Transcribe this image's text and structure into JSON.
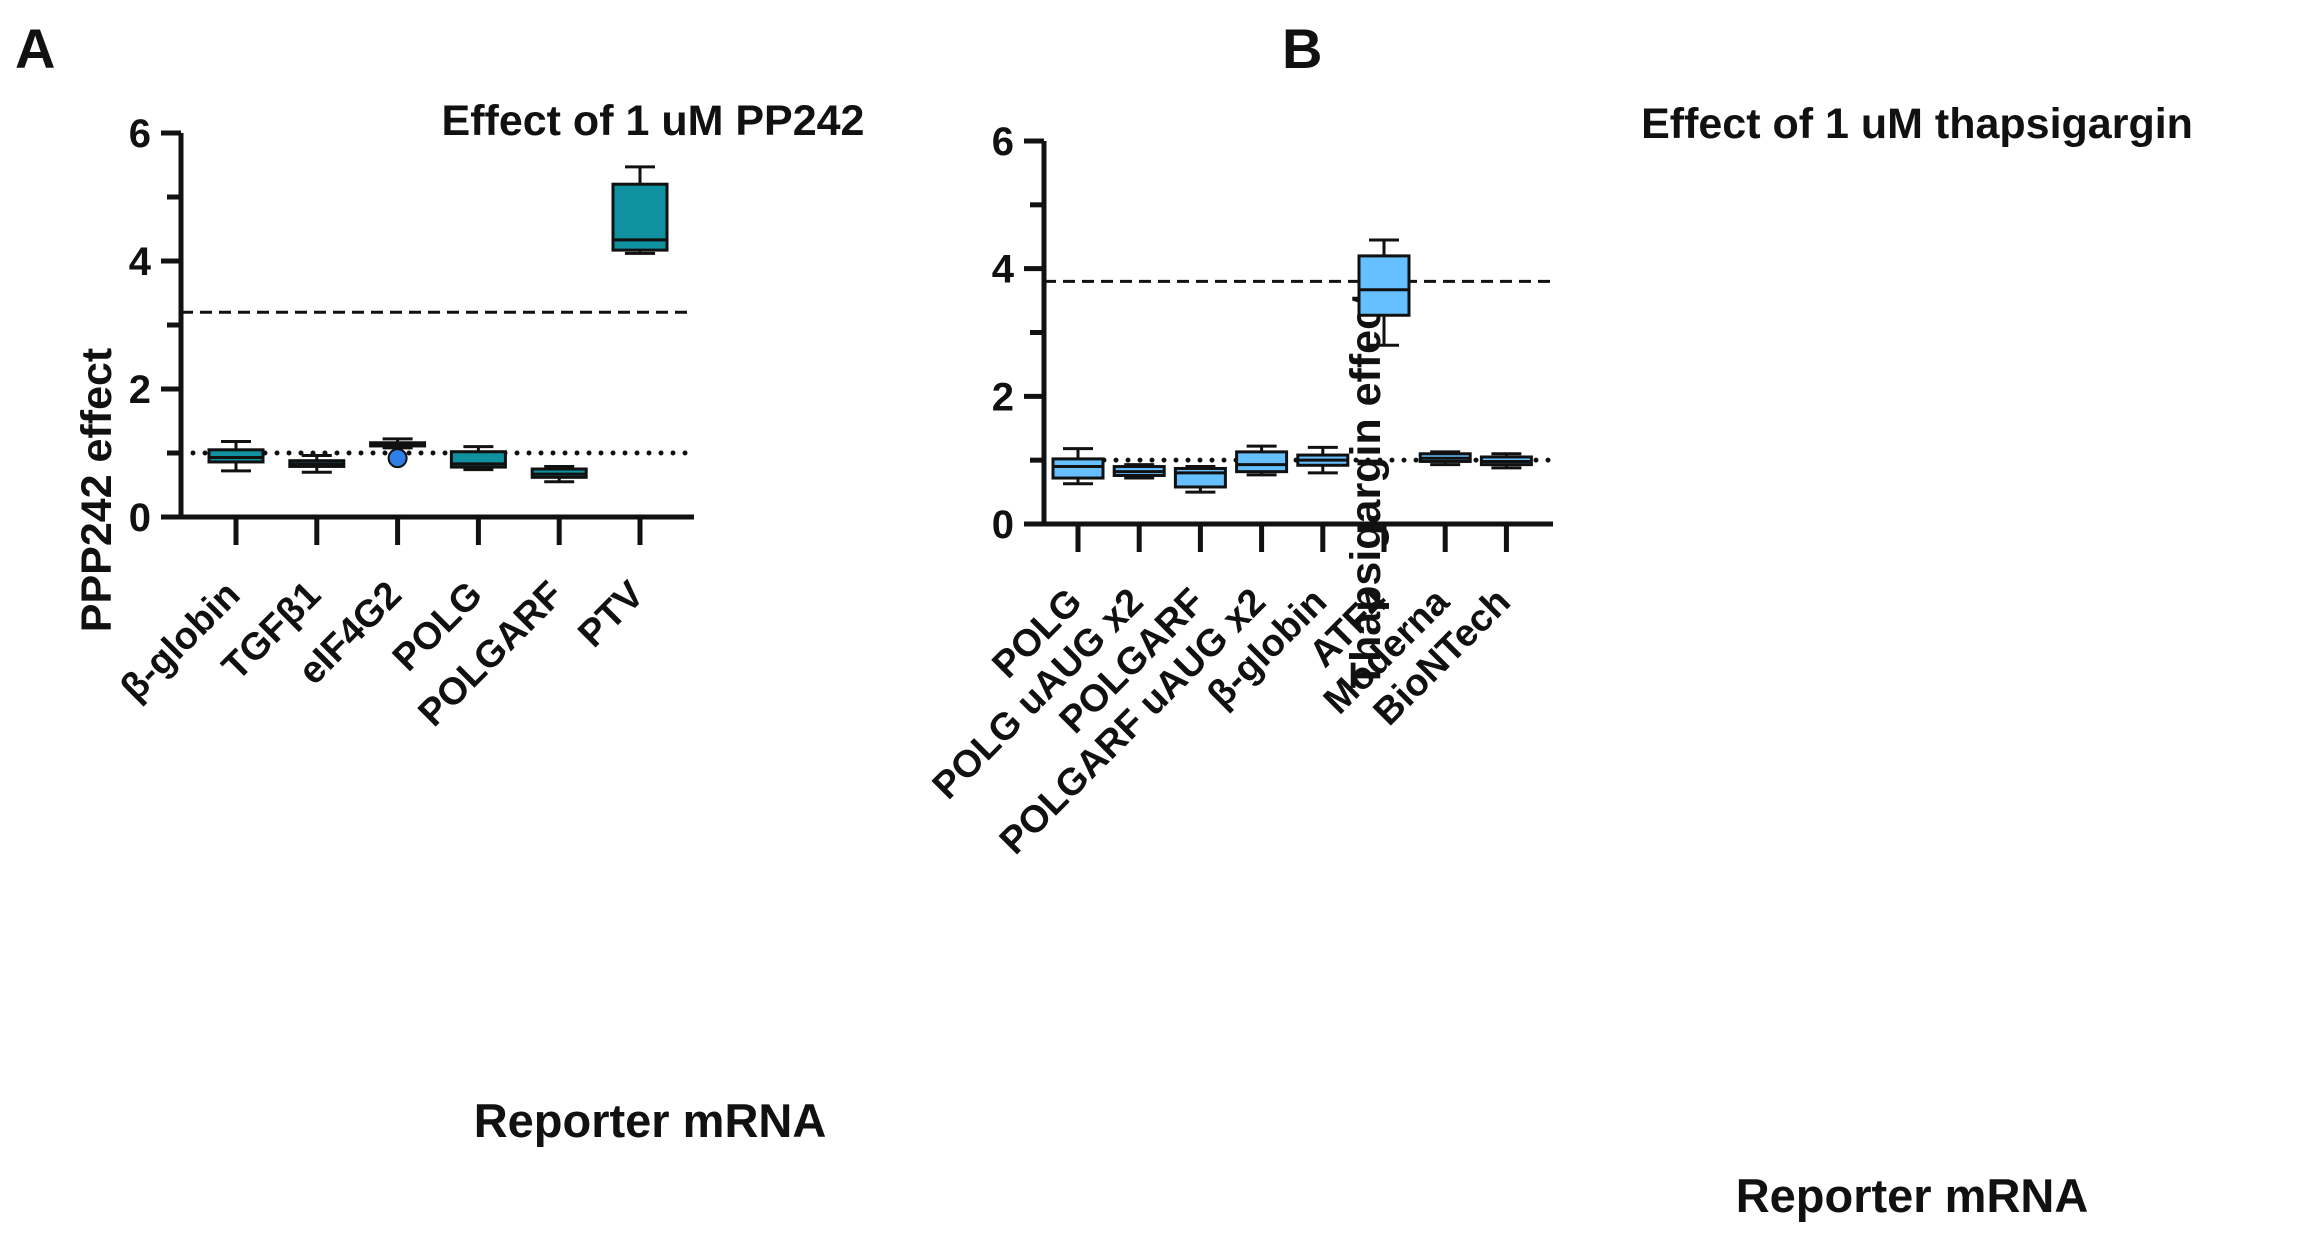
{
  "colors": {
    "panelA_box": "#0f919f",
    "panelB_box": "#66bfff",
    "axis": "#111111",
    "outlier": "#2f7fe6"
  },
  "chart_data": [
    {
      "type": "box",
      "panel_label": "A",
      "title": "Effect of 1 uM PP242",
      "xlabel": "Reporter mRNA",
      "ylabel": "PPP242 effect",
      "ylim": [
        0,
        6
      ],
      "yticks": [
        0,
        2,
        4,
        6
      ],
      "yticklabels": [
        "0",
        "2",
        "4",
        "6"
      ],
      "dashed_line": 3.2,
      "dotted_line": 1.0,
      "categories": [
        "β-globin",
        "TGFβ1",
        "eIF4G2",
        "POLG",
        "POLGARF",
        "PTV"
      ],
      "boxes": [
        {
          "min": 0.72,
          "q1": 0.86,
          "median": 0.93,
          "q3": 1.05,
          "max": 1.18
        },
        {
          "min": 0.7,
          "q1": 0.79,
          "median": 0.83,
          "q3": 0.88,
          "max": 0.96
        },
        {
          "min": 1.08,
          "q1": 1.11,
          "median": 1.14,
          "q3": 1.16,
          "max": 1.22,
          "outliers": [
            0.92
          ]
        },
        {
          "min": 0.74,
          "q1": 0.78,
          "median": 0.83,
          "q3": 1.02,
          "max": 1.1
        },
        {
          "min": 0.55,
          "q1": 0.62,
          "median": 0.67,
          "q3": 0.75,
          "max": 0.79
        },
        {
          "min": 4.12,
          "q1": 4.17,
          "median": 4.33,
          "q3": 5.2,
          "max": 5.47
        }
      ]
    },
    {
      "type": "box",
      "panel_label": "B",
      "title": "Effect of 1 uM thapsigargin",
      "xlabel": "Reporter mRNA",
      "ylabel": "Thapsigargin effect",
      "ylim": [
        0,
        6
      ],
      "yticks": [
        0,
        2,
        4,
        6
      ],
      "yticklabels": [
        "0",
        "2",
        "4",
        "6"
      ],
      "dashed_line": 3.8,
      "dotted_line": 1.0,
      "categories": [
        "POLG",
        "POLG uAUG x2",
        "POLGARF",
        "POLGARF uAUG x2",
        "β-globin",
        "ATF4",
        "Moderna",
        "BioNTech"
      ],
      "boxes": [
        {
          "min": 0.63,
          "q1": 0.72,
          "median": 0.9,
          "q3": 1.02,
          "max": 1.18
        },
        {
          "min": 0.72,
          "q1": 0.76,
          "median": 0.82,
          "q3": 0.9,
          "max": 0.93
        },
        {
          "min": 0.5,
          "q1": 0.58,
          "median": 0.8,
          "q3": 0.87,
          "max": 0.9
        },
        {
          "min": 0.77,
          "q1": 0.82,
          "median": 0.93,
          "q3": 1.13,
          "max": 1.22
        },
        {
          "min": 0.8,
          "q1": 0.92,
          "median": 1.0,
          "q3": 1.08,
          "max": 1.2
        },
        {
          "min": 2.8,
          "q1": 3.27,
          "median": 3.67,
          "q3": 4.2,
          "max": 4.45
        },
        {
          "min": 0.93,
          "q1": 0.98,
          "median": 1.03,
          "q3": 1.1,
          "max": 1.13
        },
        {
          "min": 0.88,
          "q1": 0.93,
          "median": 0.98,
          "q3": 1.05,
          "max": 1.1
        }
      ]
    }
  ]
}
